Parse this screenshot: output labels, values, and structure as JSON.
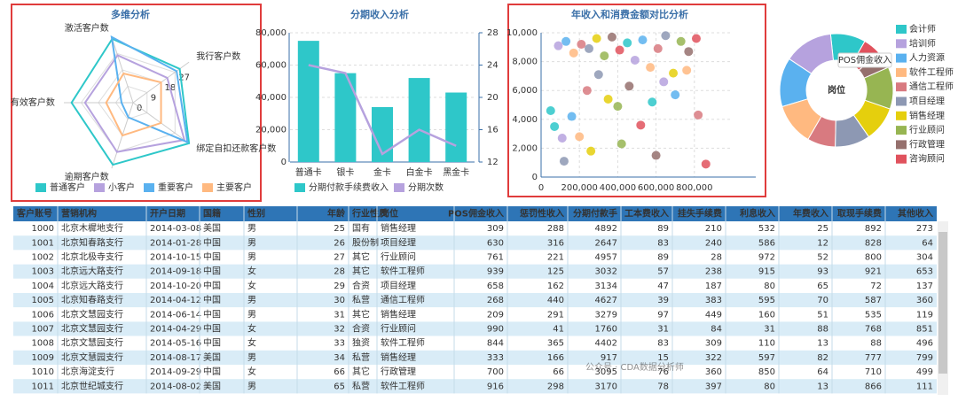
{
  "chart_data": [
    {
      "type": "radar",
      "title": "多维分析",
      "indicators": [
        "我行客户数",
        "绑定自扣还款客户数",
        "逾期客户数",
        "有效客户数",
        "激活客户数"
      ],
      "rlim": [
        0,
        36
      ],
      "rticks": [
        0,
        9,
        18,
        27
      ],
      "legend": "bottom",
      "series": [
        {
          "name": "普通客户",
          "color": "#2ec7c9",
          "values": [
            30,
            36,
            34,
            32,
            35
          ]
        },
        {
          "name": "小客户",
          "color": "#b6a2de",
          "values": [
            22,
            33,
            27,
            25,
            26
          ]
        },
        {
          "name": "重要客户",
          "color": "#5ab1ef",
          "values": [
            28,
            35,
            8,
            6,
            36
          ]
        },
        {
          "name": "主要客户",
          "color": "#ffb980",
          "values": [
            18,
            18,
            18,
            14,
            16
          ]
        }
      ]
    },
    {
      "type": "bar",
      "title": "分期收入分析",
      "categories": [
        "普通卡",
        "银卡",
        "金卡",
        "白金卡",
        "黑金卡"
      ],
      "grid": true,
      "legend": "bottom",
      "ylim": [
        0,
        80000
      ],
      "yticks": [
        0,
        {
          "value": 20000,
          "label": "20,000"
        },
        {
          "value": 40000,
          "label": "40,000"
        },
        {
          "value": 60000,
          "label": "60,000"
        },
        {
          "value": 80000,
          "label": "80,000"
        }
      ],
      "y2lim": [
        12,
        28
      ],
      "y2ticks": [
        12,
        16,
        20,
        24,
        28
      ],
      "series": [
        {
          "name": "分期付款手续费收入",
          "color": "#2ec7c9",
          "values": [
            75000,
            55000,
            34000,
            52000,
            43000
          ]
        },
        {
          "name": "分期次数",
          "color": "#b6a2de",
          "type": "line",
          "axis": "y2",
          "values": [
            24,
            23,
            13,
            16,
            14
          ]
        }
      ]
    },
    {
      "type": "scatter",
      "title": "年收入和消费金额对比分析",
      "grid": true,
      "xlim": [
        0,
        1000000
      ],
      "xticks": [
        0,
        {
          "value": 200000,
          "label": "200,000"
        },
        {
          "value": 400000,
          "label": "400,000"
        },
        {
          "value": 600000,
          "label": "600,000"
        },
        {
          "value": 800000,
          "label": "800,000"
        }
      ],
      "ylim": [
        0,
        10000
      ],
      "yticks": [
        0,
        {
          "value": 2000,
          "label": "2,000"
        },
        {
          "value": 4000,
          "label": "4,000"
        },
        {
          "value": 6000,
          "label": "6,000"
        },
        {
          "value": 8000,
          "label": "8,000"
        },
        {
          "value": 10000,
          "label": "10,000"
        }
      ],
      "x": [
        50000,
        90000,
        130000,
        170000,
        210000,
        250000,
        290000,
        330000,
        370000,
        410000,
        450000,
        490000,
        530000,
        570000,
        610000,
        650000,
        690000,
        730000,
        770000,
        810000,
        70000,
        110000,
        160000,
        200000,
        240000,
        300000,
        350000,
        400000,
        460000,
        520000,
        580000,
        640000,
        700000,
        760000,
        820000,
        120000,
        260000,
        420000,
        600000,
        860000
      ],
      "y": [
        4600,
        9100,
        9400,
        8600,
        9200,
        8900,
        9600,
        8400,
        9700,
        8800,
        9300,
        8100,
        9500,
        7600,
        8900,
        9800,
        7200,
        9400,
        8700,
        9600,
        3500,
        2700,
        4200,
        2800,
        6000,
        7100,
        5400,
        4900,
        6300,
        3600,
        5200,
        6600,
        5700,
        7400,
        4300,
        1100,
        1800,
        2300,
        1500,
        900
      ],
      "colors": [
        "#2ec7c9",
        "#b6a2de",
        "#5ab1ef",
        "#ffb980",
        "#d87a80",
        "#8d98b3",
        "#e5cf0d",
        "#97b552",
        "#95706d",
        "#e0525d",
        "#2ec7c9",
        "#b6a2de",
        "#5ab1ef",
        "#ffb980",
        "#d87a80",
        "#8d98b3",
        "#e5cf0d",
        "#97b552",
        "#95706d",
        "#e0525d",
        "#2ec7c9",
        "#b6a2de",
        "#5ab1ef",
        "#ffb980",
        "#d87a80",
        "#8d98b3",
        "#e5cf0d",
        "#97b552",
        "#95706d",
        "#e0525d",
        "#2ec7c9",
        "#b6a2de",
        "#5ab1ef",
        "#ffb980",
        "#d87a80",
        "#8d98b3",
        "#e5cf0d",
        "#97b552",
        "#95706d",
        "#e0525d"
      ]
    },
    {
      "type": "pie",
      "title": "岗位",
      "tooltip": "POS佣金收入",
      "legend": "right",
      "categories": [
        "会计师",
        "培训师",
        "人力资源",
        "软件工程师",
        "通信工程师",
        "项目经理",
        "销售经理",
        "行业顾问",
        "行政管理",
        "咨询顾问"
      ],
      "values": [
        10,
        14,
        14,
        12,
        8,
        10,
        10,
        12,
        5,
        5
      ],
      "colors": [
        "#2ec7c9",
        "#b6a2de",
        "#5ab1ef",
        "#ffb980",
        "#d87a80",
        "#8d98b3",
        "#e5cf0d",
        "#97b552",
        "#95706d",
        "#e0525d"
      ]
    }
  ],
  "table": {
    "columns": [
      "客户账号",
      "营销机构",
      "开户日期",
      "国籍",
      "性别",
      "年龄",
      "行业性质",
      "岗位",
      "POS佣金收入",
      "惩罚性收入",
      "分期付款手",
      "工本费收入",
      "挂失手续费",
      "利息收入",
      "年费收入",
      "取现手续费",
      "其他收入"
    ],
    "rows": [
      [
        1000,
        "北京木樨地支行",
        "2014-03-08",
        "美国",
        "男",
        25,
        "国有",
        "销售经理",
        309,
        288,
        4892,
        89,
        210,
        532,
        25,
        892,
        273
      ],
      [
        1001,
        "北京知春路支行",
        "2014-01-28",
        "中国",
        "男",
        26,
        "股份制",
        "项目经理",
        630,
        316,
        2647,
        83,
        240,
        586,
        12,
        828,
        64
      ],
      [
        1002,
        "北京北极寺支行",
        "2014-10-15",
        "中国",
        "男",
        27,
        "其它",
        "行业顾问",
        761,
        221,
        4957,
        89,
        28,
        972,
        52,
        800,
        304
      ],
      [
        1003,
        "北京远大路支行",
        "2014-09-18",
        "中国",
        "女",
        28,
        "其它",
        "软件工程师",
        939,
        125,
        3032,
        57,
        238,
        915,
        93,
        921,
        653
      ],
      [
        1004,
        "北京远大路支行",
        "2014-10-20",
        "中国",
        "女",
        29,
        "合资",
        "项目经理",
        658,
        162,
        3134,
        47,
        187,
        80,
        65,
        72,
        137
      ],
      [
        1005,
        "北京知春路支行",
        "2014-04-12",
        "中国",
        "男",
        30,
        "私营",
        "通信工程师",
        268,
        440,
        4627,
        39,
        383,
        595,
        70,
        587,
        360
      ],
      [
        1006,
        "北京文慧园支行",
        "2014-06-14",
        "中国",
        "男",
        31,
        "其它",
        "销售经理",
        209,
        291,
        3279,
        97,
        449,
        160,
        51,
        535,
        119
      ],
      [
        1007,
        "北京文慧园支行",
        "2014-04-29",
        "中国",
        "女",
        32,
        "合资",
        "行业顾问",
        990,
        41,
        1760,
        31,
        84,
        31,
        88,
        768,
        851
      ],
      [
        1008,
        "北京文慧园支行",
        "2014-05-16",
        "中国",
        "女",
        33,
        "独资",
        "软件工程师",
        844,
        365,
        4402,
        83,
        309,
        110,
        13,
        88,
        496
      ],
      [
        1009,
        "北京文慧园支行",
        "2014-08-17",
        "美国",
        "男",
        34,
        "私营",
        "销售经理",
        333,
        166,
        917,
        15,
        322,
        597,
        82,
        777,
        799
      ],
      [
        1010,
        "北京海淀支行",
        "2014-09-29",
        "中国",
        "女",
        66,
        "其它",
        "行政管理",
        700,
        66,
        3095,
        76,
        360,
        850,
        64,
        710,
        499
      ],
      [
        1011,
        "北京世纪城支行",
        "2014-08-02",
        "美国",
        "男",
        65,
        "私营",
        "软件工程师",
        916,
        298,
        3170,
        78,
        397,
        80,
        13,
        866,
        111
      ]
    ]
  },
  "watermark": "公众号 · CDA数据分析师"
}
